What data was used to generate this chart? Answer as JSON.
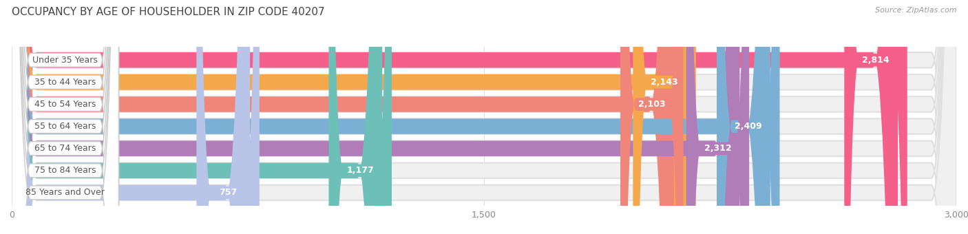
{
  "title": "OCCUPANCY BY AGE OF HOUSEHOLDER IN ZIP CODE 40207",
  "source": "Source: ZipAtlas.com",
  "categories": [
    "Under 35 Years",
    "35 to 44 Years",
    "45 to 54 Years",
    "55 to 64 Years",
    "65 to 74 Years",
    "75 to 84 Years",
    "85 Years and Over"
  ],
  "values": [
    2814,
    2143,
    2103,
    2409,
    2312,
    1177,
    757
  ],
  "bar_colors": [
    "#F4608A",
    "#F5A84B",
    "#F0857A",
    "#7BAFD4",
    "#B07DB8",
    "#6DC0B8",
    "#B8C4E8"
  ],
  "bar_bg_colors": [
    "#F5E0E8",
    "#FAE5D0",
    "#F5DDD8",
    "#D8E8F5",
    "#E5D8EE",
    "#D0ECEC",
    "#E0E4F5"
  ],
  "xlim": [
    0,
    3000
  ],
  "xticks": [
    0,
    1500,
    3000
  ],
  "background_color": "#ffffff",
  "plot_bg_color": "#f8f8f8",
  "title_fontsize": 11,
  "label_fontsize": 9,
  "value_fontsize": 9
}
